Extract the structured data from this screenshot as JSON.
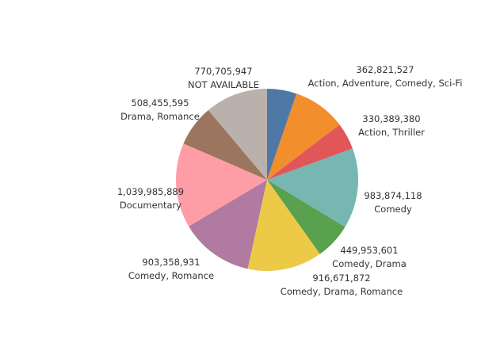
{
  "chart_data": {
    "type": "pie",
    "title": "",
    "slices": [
      {
        "label": "Action, Adventure, Comedy, Sci-Fi",
        "value": 362821527,
        "value_label": "362,821,527",
        "color": "#4e79a7"
      },
      {
        "label": null,
        "value": 650000000,
        "value_label": null,
        "color": "#f28e2b"
      },
      {
        "label": "Action, Thriller",
        "value": 330389380,
        "value_label": "330,389,380",
        "color": "#e15759"
      },
      {
        "label": "Comedy",
        "value": 983874118,
        "value_label": "983,874,118",
        "color": "#76b7b2"
      },
      {
        "label": "Comedy, Drama",
        "value": 449953601,
        "value_label": "449,953,601",
        "color": "#59a14f"
      },
      {
        "label": "Comedy, Drama, Romance",
        "value": 916671872,
        "value_label": "916,671,872",
        "color": "#edc948"
      },
      {
        "label": "Comedy, Romance",
        "value": 903358931,
        "value_label": "903,358,931",
        "color": "#b07aa1"
      },
      {
        "label": "Documentary",
        "value": 1039985889,
        "value_label": "1,039,985,889",
        "color": "#ff9da7"
      },
      {
        "label": "Drama, Romance",
        "value": 508455595,
        "value_label": "508,455,595",
        "color": "#9c755f"
      },
      {
        "label": "NOT AVAILABLE",
        "value": 770705947,
        "value_label": "770,705,947",
        "color": "#bab0ac"
      }
    ]
  }
}
